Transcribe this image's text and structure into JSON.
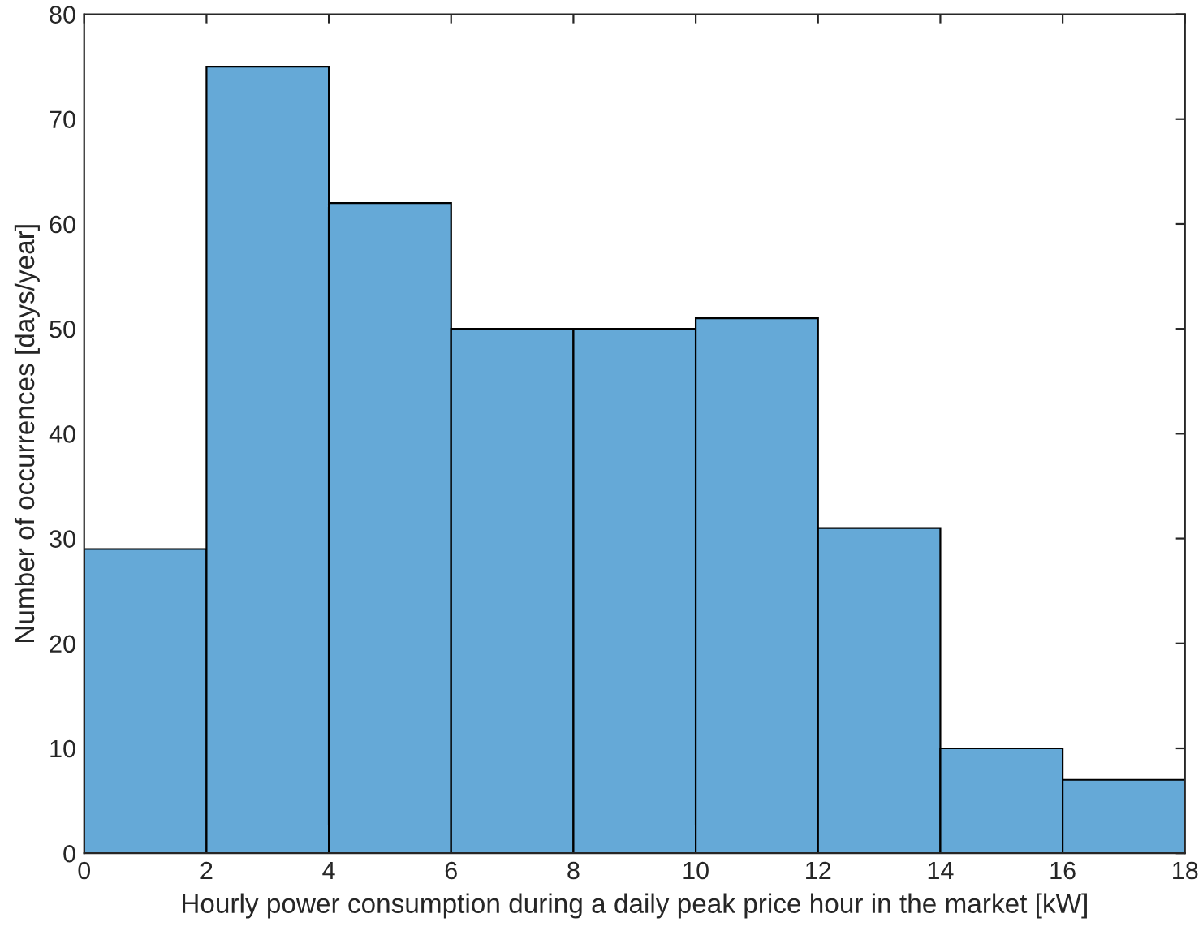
{
  "chart_data": {
    "type": "histogram",
    "xlabel": "Hourly power consumption during a daily peak price hour in the market [kW]",
    "ylabel": "Number of occurrences [days/year]",
    "bins": [
      0,
      2,
      4,
      6,
      8,
      10,
      12,
      14,
      16,
      18
    ],
    "values": [
      29,
      75,
      62,
      50,
      50,
      51,
      31,
      10,
      7
    ],
    "color": "#65a9d7",
    "xlim": [
      0,
      18
    ],
    "xticks": [
      0,
      2,
      4,
      6,
      8,
      10,
      12,
      14,
      16,
      18
    ],
    "ylim": [
      0,
      80
    ],
    "yticks": [
      0,
      10,
      20,
      30,
      40,
      50,
      60,
      70,
      80
    ],
    "grid": false
  }
}
